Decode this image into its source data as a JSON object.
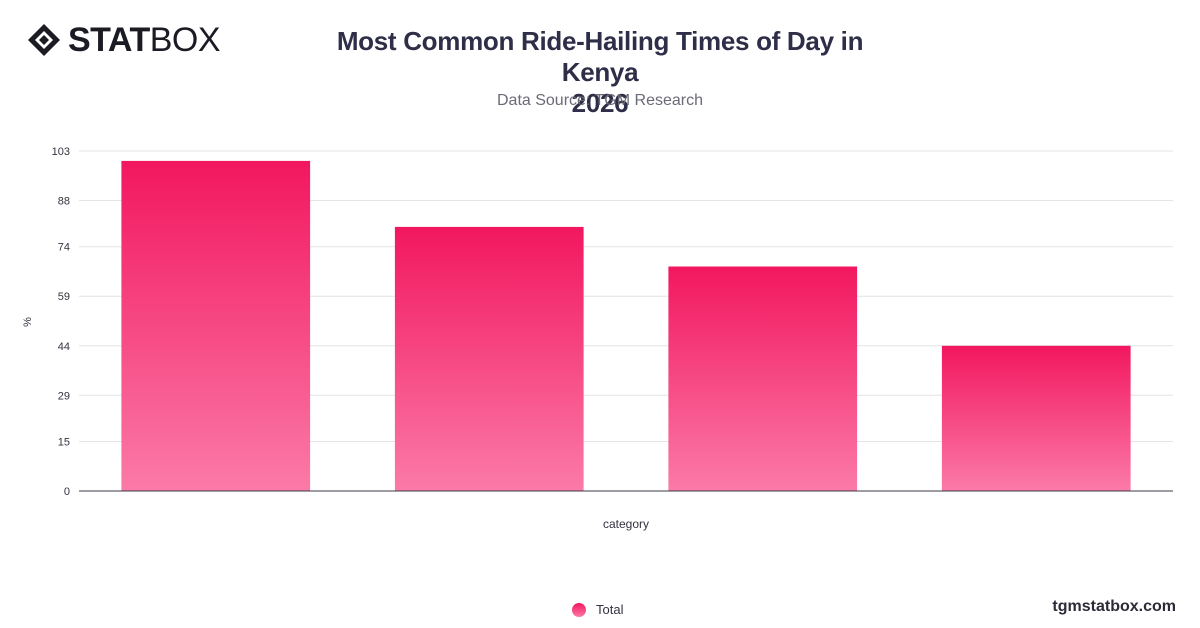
{
  "brand": {
    "logo_text_bold": "STAT",
    "logo_text_light": "BOX",
    "url": "tgmstatbox.com",
    "logo_icon": "diamond-logo-icon"
  },
  "header": {
    "title_line1": "Most Common Ride-Hailing Times of Day in Kenya",
    "title_line2": "2026",
    "subtitle": "Data Source: TGM Research"
  },
  "legend": {
    "items": [
      {
        "label": "Total",
        "color": "#f2175f"
      }
    ]
  },
  "chart_data": {
    "type": "bar",
    "categories": [
      "",
      "",
      "",
      ""
    ],
    "series": [
      {
        "name": "Total",
        "values": [
          100,
          80,
          68,
          44
        ]
      }
    ],
    "xlabel": "category",
    "ylabel": "%",
    "ylim": [
      0,
      103
    ],
    "yticks": [
      0,
      15,
      29,
      44,
      59,
      74,
      88,
      103
    ],
    "grid": true,
    "legend_position": "bottom",
    "colors": {
      "bar_top": "#f2175f",
      "bar_bottom": "#fb7aa8",
      "grid": "#e3e3e8",
      "axis": "#3a3a44"
    }
  }
}
